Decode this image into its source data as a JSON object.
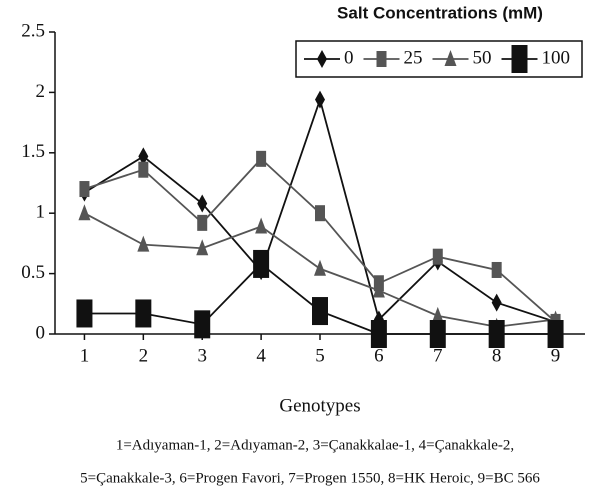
{
  "chart_data": {
    "type": "line",
    "x_label": "Genotypes",
    "legend_title": "Salt Concentrations (mM)",
    "legend": "upper right",
    "x": [
      1,
      2,
      3,
      4,
      5,
      6,
      7,
      8,
      9
    ],
    "xlim": [
      0.5,
      9.5
    ],
    "xticks": [
      1,
      2,
      3,
      4,
      5,
      6,
      7,
      8,
      9
    ],
    "ylim": [
      0,
      2.5
    ],
    "yticks": [
      0,
      0.5,
      1,
      1.5,
      2,
      2.5
    ],
    "grid": false,
    "series": [
      {
        "name": "0",
        "color": "#111111",
        "marker": "diamond",
        "values": [
          1.17,
          1.47,
          1.08,
          0.52,
          1.94,
          0.12,
          0.6,
          0.26,
          0.1
        ]
      },
      {
        "name": "25",
        "color": "#555555",
        "marker": "square",
        "values": [
          1.2,
          1.36,
          0.92,
          1.45,
          1.0,
          0.42,
          0.64,
          0.53,
          0.1
        ]
      },
      {
        "name": "50",
        "color": "#555555",
        "marker": "triangle",
        "values": [
          1.0,
          0.74,
          0.71,
          0.89,
          0.54,
          0.36,
          0.15,
          0.06,
          0.12
        ]
      },
      {
        "name": "100",
        "color": "#111111",
        "marker": "bigsquare",
        "values": [
          0.17,
          0.17,
          0.08,
          0.58,
          0.19,
          0,
          0,
          0,
          0
        ]
      }
    ],
    "notes": [
      "1=Adıyaman-1,   2=Adıyaman-2,   3=Çanakkalae-1,   4=Çanakkale-2,",
      "5=Çanakkale-3, 6=Progen Favori,  7=Progen 1550,   8=HK Heroic,   9=BC 566"
    ]
  }
}
